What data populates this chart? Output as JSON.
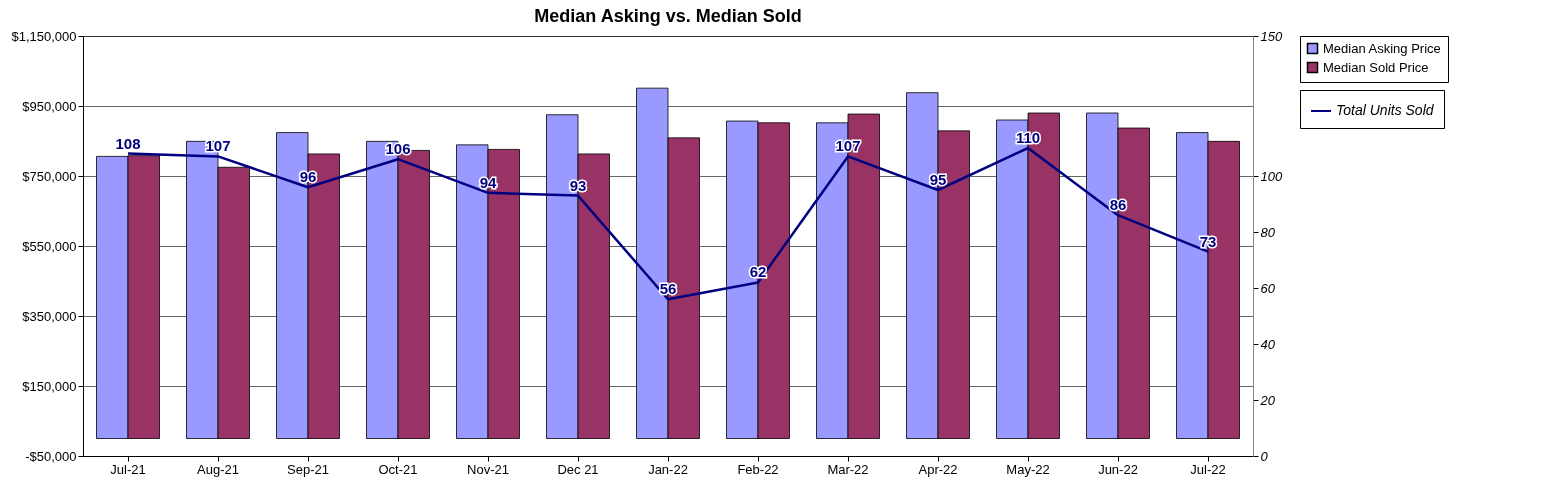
{
  "chart_data": {
    "type": "bar",
    "title": "Median Asking vs. Median Sold",
    "categories": [
      "Jul-21",
      "Aug-21",
      "Sep-21",
      "Oct-21",
      "Nov-21",
      "Dec 21",
      "Jan-22",
      "Feb-22",
      "Mar-22",
      "Apr-22",
      "May-22",
      "Jun-22",
      "Jul-22"
    ],
    "series": [
      {
        "name": "Median Asking Price",
        "color": "#9999ff",
        "values": [
          806000,
          849000,
          874000,
          849000,
          839000,
          925000,
          1001000,
          907000,
          902000,
          988000,
          910000,
          930000,
          874000
        ]
      },
      {
        "name": "Median Sold Price",
        "color": "#993366",
        "values": [
          808000,
          775000,
          813000,
          823000,
          826000,
          813000,
          859000,
          902000,
          927000,
          879000,
          930000,
          887000,
          849000
        ]
      },
      {
        "name": "Total Units Sold",
        "type": "line",
        "axis": "y2",
        "color": "#000080",
        "data_labels": true,
        "marker": "none",
        "line_style": "solid",
        "values": [
          108,
          107,
          96,
          106,
          94,
          93,
          56,
          62,
          107,
          95,
          110,
          86,
          73
        ]
      }
    ],
    "ylim": [
      -50000,
      1150000
    ],
    "yticks": [
      {
        "value": -50000,
        "label": "-$50,000"
      },
      {
        "value": 150000,
        "label": "$150,000"
      },
      {
        "value": 350000,
        "label": "$350,000"
      },
      {
        "value": 550000,
        "label": "$550,000"
      },
      {
        "value": 750000,
        "label": "$750,000"
      },
      {
        "value": 950000,
        "label": "$950,000"
      },
      {
        "value": 1150000,
        "label": "$1,150,000"
      }
    ],
    "y2lim": [
      0,
      150
    ],
    "y2ticks": [
      0,
      20,
      40,
      60,
      80,
      100,
      150
    ],
    "grid": "y",
    "legend": "right"
  }
}
